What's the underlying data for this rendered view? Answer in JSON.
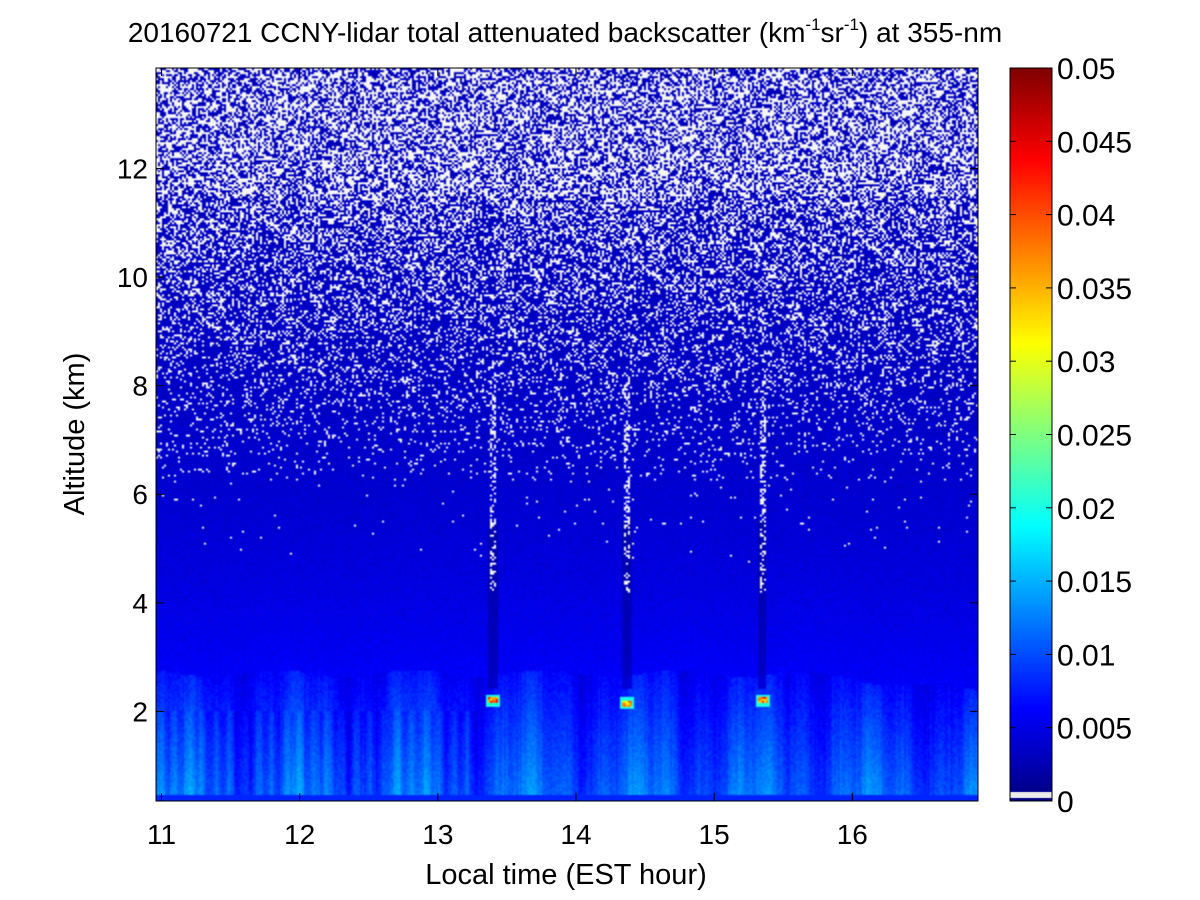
{
  "chart_data": {
    "type": "heatmap",
    "title": {
      "main": "20160721 CCNY-lidar total attenuated backscatter (km",
      "sup1": "-1",
      "mid": "sr",
      "sup2": "-1",
      "tail": ") at 355-nm"
    },
    "xlabel": "Local time (EST hour)",
    "ylabel": "Altitude (km)",
    "xlim": [
      10.96,
      16.91
    ],
    "ylim": [
      0.35,
      13.85
    ],
    "xticks": [
      {
        "value": 11,
        "label": "11"
      },
      {
        "value": 12,
        "label": "12"
      },
      {
        "value": 13,
        "label": "13"
      },
      {
        "value": 14,
        "label": "14"
      },
      {
        "value": 15,
        "label": "15"
      },
      {
        "value": 16,
        "label": "16"
      }
    ],
    "yticks": [
      {
        "value": 2,
        "label": "2"
      },
      {
        "value": 4,
        "label": "4"
      },
      {
        "value": 6,
        "label": "6"
      },
      {
        "value": 8,
        "label": "8"
      },
      {
        "value": 10,
        "label": "10"
      },
      {
        "value": 12,
        "label": "12"
      }
    ],
    "colorbar": {
      "colormap": "jet",
      "range": [
        0,
        0.05
      ],
      "ticks": [
        {
          "value": 0,
          "label": "0"
        },
        {
          "value": 0.005,
          "label": "0.005"
        },
        {
          "value": 0.01,
          "label": "0.01"
        },
        {
          "value": 0.015,
          "label": "0.015"
        },
        {
          "value": 0.02,
          "label": "0.02"
        },
        {
          "value": 0.025,
          "label": "0.025"
        },
        {
          "value": 0.03,
          "label": "0.03"
        },
        {
          "value": 0.035,
          "label": "0.035"
        },
        {
          "value": 0.04,
          "label": "0.04"
        },
        {
          "value": 0.045,
          "label": "0.045"
        },
        {
          "value": 0.05,
          "label": "0.05"
        }
      ]
    },
    "features": {
      "boundary_layer_top_km": 2.7,
      "cloud_events": [
        {
          "time": 13.4,
          "altitude_km": 2.2,
          "peak_value": 0.045
        },
        {
          "time": 14.37,
          "altitude_km": 2.15,
          "peak_value": 0.04
        },
        {
          "time": 15.35,
          "altitude_km": 2.2,
          "peak_value": 0.045
        }
      ],
      "near_surface_value": 0.013,
      "free_troposphere_value": 0.003
    },
    "grid": false,
    "legend": "colorbar-right"
  },
  "colors": {
    "background": "#ffffff",
    "axes": "#000000"
  }
}
